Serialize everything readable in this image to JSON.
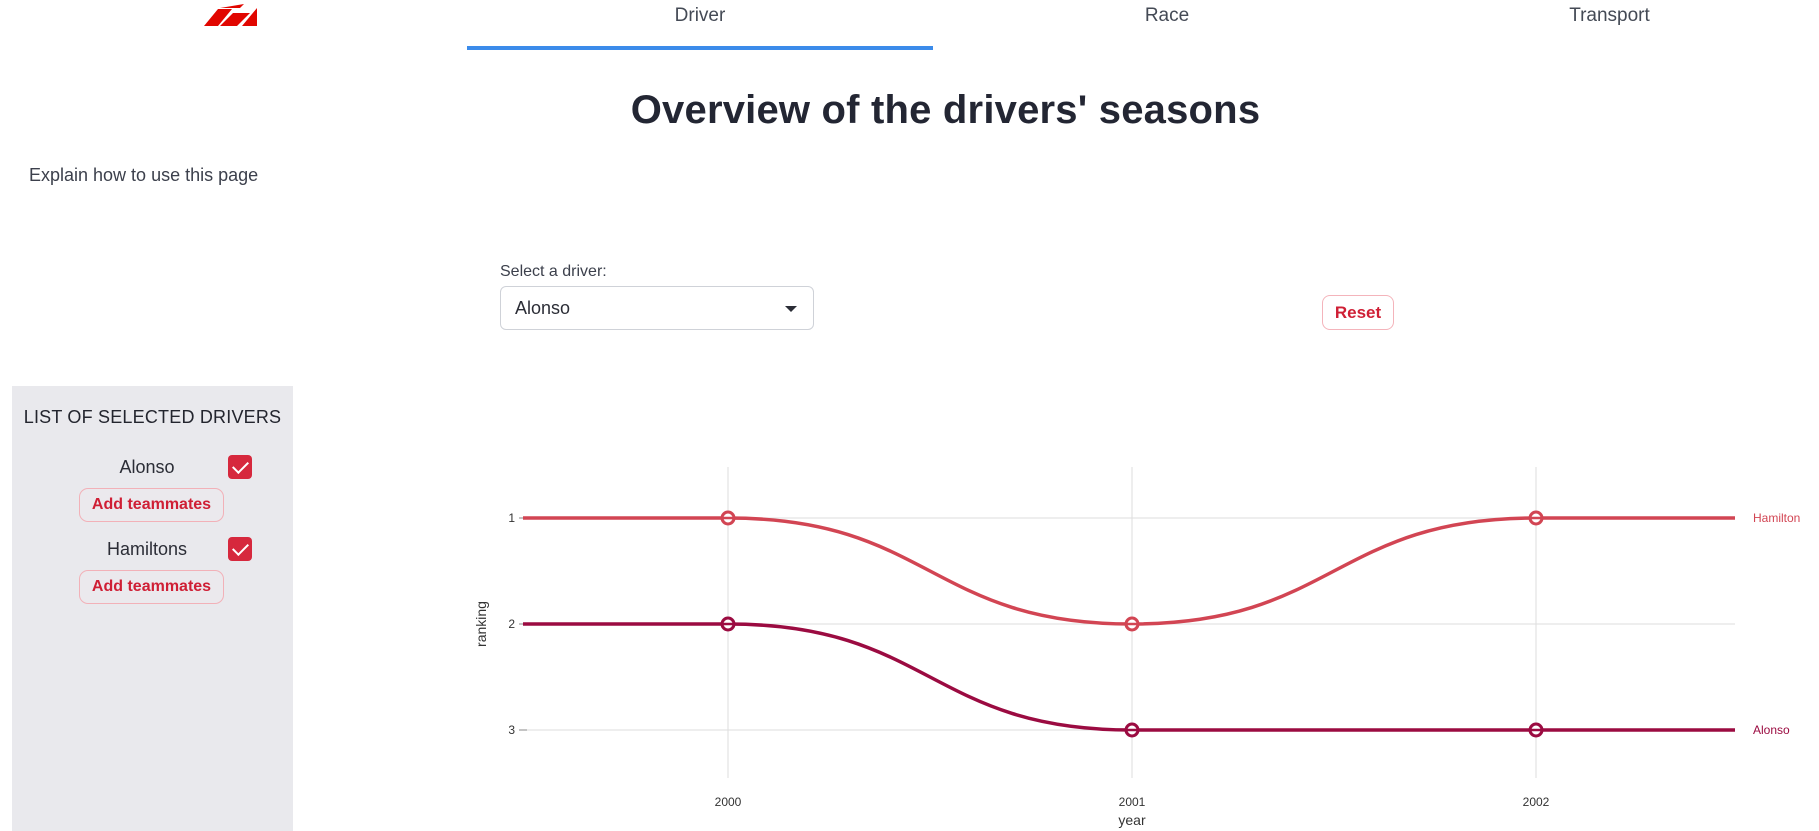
{
  "nav": {
    "tabs": [
      {
        "label": "Driver",
        "active": true
      },
      {
        "label": "Race",
        "active": false
      },
      {
        "label": "Transport",
        "active": false
      }
    ],
    "logo_icon": "f1-logo",
    "active_color": "#3b8bea"
  },
  "page": {
    "title": "Overview of the drivers' seasons",
    "explain_link": "Explain how to use this page"
  },
  "selector": {
    "label": "Select a driver:",
    "value": "Alonso",
    "reset_label": "Reset"
  },
  "sidebar": {
    "title": "LIST OF SELECTED DRIVERS",
    "drivers": [
      {
        "name": "Alonso",
        "checked": true,
        "button": "Add teammates"
      },
      {
        "name": "Hamiltons",
        "checked": true,
        "button": "Add teammates"
      }
    ],
    "accent": "#d6283d"
  },
  "chart_data": {
    "type": "line",
    "xlabel": "year",
    "ylabel": "ranking",
    "x": [
      2000,
      2001,
      2002
    ],
    "y_ticks": [
      1,
      2,
      3
    ],
    "y_inverted": true,
    "grid": true,
    "legend": "end-labels",
    "series": [
      {
        "name": "Hamilton",
        "values": [
          1,
          2,
          1
        ],
        "color": "#d24553"
      },
      {
        "name": "Alonso",
        "values": [
          2,
          3,
          3
        ],
        "color": "#9b0b41"
      }
    ]
  }
}
